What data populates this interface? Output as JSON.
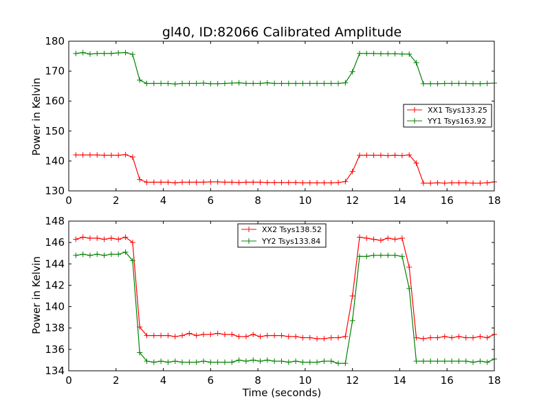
{
  "chart_data": [
    {
      "type": "line",
      "title": "gl40, ID:82066 Calibrated Amplitude",
      "xlabel": "",
      "ylabel": "Power in Kelvin",
      "xlim": [
        0,
        18
      ],
      "ylim": [
        130,
        180
      ],
      "xticks": [
        "0",
        "2",
        "4",
        "6",
        "8",
        "10",
        "12",
        "14",
        "16",
        "18"
      ],
      "yticks": [
        "130",
        "140",
        "150",
        "160",
        "170",
        "180"
      ],
      "legend_position": "center-right",
      "grid": false,
      "x": [
        0.3,
        0.6,
        0.9,
        1.2,
        1.5,
        1.8,
        2.1,
        2.4,
        2.7,
        3.0,
        3.3,
        3.6,
        3.9,
        4.2,
        4.5,
        4.8,
        5.1,
        5.4,
        5.7,
        6.0,
        6.3,
        6.6,
        6.9,
        7.2,
        7.5,
        7.8,
        8.1,
        8.4,
        8.7,
        9.0,
        9.3,
        9.6,
        9.9,
        10.2,
        10.5,
        10.8,
        11.1,
        11.4,
        11.7,
        12.0,
        12.3,
        12.6,
        12.9,
        13.2,
        13.5,
        13.8,
        14.1,
        14.4,
        14.7,
        15.0,
        15.3,
        15.6,
        15.9,
        16.2,
        16.5,
        16.8,
        17.1,
        17.4,
        17.7,
        18.0
      ],
      "series": [
        {
          "name": "XX1 Tsys133.25",
          "color": "#ff0000",
          "values": [
            142.0,
            142.0,
            142.0,
            142.0,
            141.9,
            141.9,
            141.9,
            142.1,
            141.3,
            133.8,
            132.9,
            132.9,
            132.9,
            132.9,
            132.7,
            132.9,
            132.9,
            132.9,
            132.9,
            133.0,
            133.0,
            132.9,
            132.9,
            132.8,
            132.9,
            132.9,
            132.9,
            132.8,
            132.8,
            132.8,
            132.8,
            132.8,
            132.7,
            132.7,
            132.7,
            132.7,
            132.7,
            132.8,
            133.1,
            136.5,
            141.9,
            141.9,
            141.9,
            141.9,
            141.8,
            141.9,
            141.8,
            142.0,
            139.3,
            132.6,
            132.6,
            132.7,
            132.6,
            132.7,
            132.7,
            132.7,
            132.6,
            132.6,
            132.7,
            133.0
          ]
        },
        {
          "name": "YY1 Tsys163.92",
          "color": "#008000",
          "values": [
            175.9,
            176.2,
            175.7,
            175.9,
            175.9,
            175.9,
            176.1,
            176.2,
            175.6,
            167.0,
            165.9,
            165.9,
            165.9,
            165.9,
            165.7,
            165.9,
            165.9,
            165.9,
            166.0,
            165.8,
            165.8,
            165.9,
            166.0,
            166.1,
            165.9,
            165.9,
            165.9,
            166.1,
            165.9,
            165.9,
            165.9,
            165.9,
            165.9,
            165.9,
            165.9,
            165.9,
            165.9,
            165.9,
            166.1,
            169.8,
            175.9,
            175.9,
            175.9,
            175.8,
            175.8,
            175.8,
            175.7,
            175.7,
            172.8,
            165.8,
            165.8,
            165.8,
            165.9,
            165.9,
            165.9,
            165.9,
            165.8,
            165.8,
            165.9,
            166.0
          ]
        }
      ]
    },
    {
      "type": "line",
      "title": "",
      "xlabel": "Time (seconds)",
      "ylabel": "Power in Kelvin",
      "xlim": [
        0,
        18
      ],
      "ylim": [
        134,
        148
      ],
      "xticks": [
        "0",
        "2",
        "4",
        "6",
        "8",
        "10",
        "12",
        "14",
        "16",
        "18"
      ],
      "yticks": [
        "134",
        "136",
        "138",
        "140",
        "142",
        "144",
        "146",
        "148"
      ],
      "legend_position": "upper-center",
      "grid": false,
      "x": [
        0.3,
        0.6,
        0.9,
        1.2,
        1.5,
        1.8,
        2.1,
        2.4,
        2.7,
        3.0,
        3.3,
        3.6,
        3.9,
        4.2,
        4.5,
        4.8,
        5.1,
        5.4,
        5.7,
        6.0,
        6.3,
        6.6,
        6.9,
        7.2,
        7.5,
        7.8,
        8.1,
        8.4,
        8.7,
        9.0,
        9.3,
        9.6,
        9.9,
        10.2,
        10.5,
        10.8,
        11.1,
        11.4,
        11.7,
        12.0,
        12.3,
        12.6,
        12.9,
        13.2,
        13.5,
        13.8,
        14.1,
        14.4,
        14.7,
        15.0,
        15.3,
        15.6,
        15.9,
        16.2,
        16.5,
        16.8,
        17.1,
        17.4,
        17.7,
        18.0
      ],
      "series": [
        {
          "name": "XX2 Tsys138.52",
          "color": "#ff0000",
          "values": [
            146.3,
            146.5,
            146.4,
            146.4,
            146.3,
            146.4,
            146.3,
            146.5,
            146.0,
            138.1,
            137.3,
            137.3,
            137.3,
            137.3,
            137.2,
            137.3,
            137.5,
            137.3,
            137.4,
            137.4,
            137.5,
            137.4,
            137.4,
            137.2,
            137.2,
            137.4,
            137.2,
            137.3,
            137.3,
            137.3,
            137.2,
            137.2,
            137.1,
            137.1,
            137.0,
            137.0,
            137.1,
            137.1,
            137.2,
            141.0,
            146.5,
            146.4,
            146.3,
            146.2,
            146.4,
            146.3,
            146.4,
            143.7,
            137.1,
            137.0,
            137.1,
            137.1,
            137.2,
            137.1,
            137.2,
            137.1,
            137.1,
            137.2,
            137.1,
            137.4
          ]
        },
        {
          "name": "YY2 Tsys133.84",
          "color": "#008000",
          "values": [
            144.8,
            144.9,
            144.8,
            144.9,
            144.8,
            144.9,
            144.9,
            145.1,
            144.3,
            135.7,
            134.9,
            134.8,
            134.9,
            134.8,
            134.9,
            134.8,
            134.8,
            134.8,
            134.9,
            134.8,
            134.8,
            134.8,
            134.8,
            135.0,
            134.9,
            135.0,
            134.9,
            135.0,
            134.9,
            134.9,
            134.8,
            134.9,
            134.8,
            134.8,
            134.8,
            134.9,
            134.9,
            134.7,
            134.7,
            138.7,
            144.7,
            144.7,
            144.8,
            144.8,
            144.8,
            144.8,
            144.7,
            141.7,
            134.9,
            134.9,
            134.9,
            134.9,
            134.9,
            134.9,
            134.9,
            134.9,
            134.8,
            134.9,
            134.8,
            135.1
          ]
        }
      ]
    }
  ]
}
